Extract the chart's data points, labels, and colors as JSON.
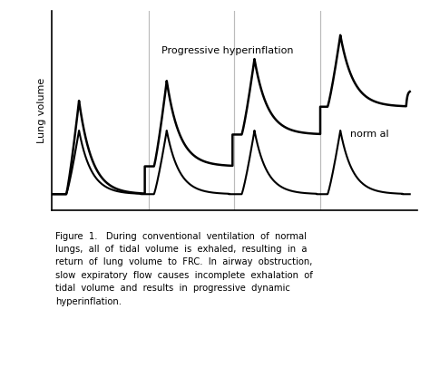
{
  "ylabel": "Lung volume",
  "bg_color": "#ffffff",
  "line_color": "#000000",
  "vline_color": "#bbbbbb",
  "normal_label": "norm al",
  "hyperinflation_label": "Progressive hyperinflation",
  "vline_positions": [
    0.265,
    0.5,
    0.735
  ],
  "figsize": [
    4.74,
    4.16
  ],
  "dpi": 100,
  "caption_lines": [
    "Figure  1.   During  conventional  ventilation  of  normal",
    "lungs,  all  of  tidal  volume  is  exhaled,  resulting  in  a",
    "return  of  lung  volume  to  FRC.  In  airway  obstruction,",
    "slow  expiratory  flow  causes  incomplete  exhalation  of",
    "tidal  volume  and  results  in  progressive  dynamic",
    "hyperinflation."
  ]
}
